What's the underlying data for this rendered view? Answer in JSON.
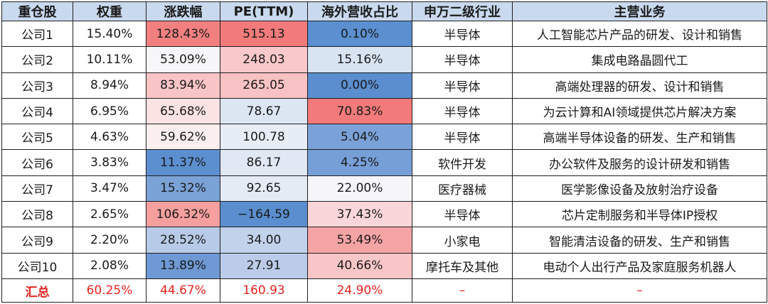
{
  "table": {
    "headers": [
      "重仓股",
      "权重",
      "涨跌幅",
      "PE(TTM)",
      "海外营收占比",
      "申万二级行业",
      "主营业务"
    ],
    "rows": [
      {
        "name": "公司1",
        "weight": "15.40%",
        "change": "128.43%",
        "pe": "515.13",
        "overseas": "0.10%",
        "industry": "半导体",
        "business": "人工智能芯片产品的研发、设计和销售",
        "colors": {
          "change": "#f28080",
          "pe": "#f27a7a",
          "overseas": "#5b8fd0"
        }
      },
      {
        "name": "公司2",
        "weight": "10.11%",
        "change": "53.09%",
        "pe": "248.03",
        "overseas": "15.16%",
        "industry": "半导体",
        "business": "集成电路晶圆代工",
        "colors": {
          "change": "#f7f7f9",
          "pe": "#f9c8cb",
          "overseas": "#d9e4f2"
        }
      },
      {
        "name": "公司3",
        "weight": "8.94%",
        "change": "83.94%",
        "pe": "265.05",
        "overseas": "0.00%",
        "industry": "半导体",
        "business": "高端处理器的研发、设计和销售",
        "colors": {
          "change": "#f8c4c6",
          "pe": "#f8c1c4",
          "overseas": "#5a8ecf"
        }
      },
      {
        "name": "公司4",
        "weight": "6.95%",
        "change": "65.68%",
        "pe": "78.67",
        "overseas": "70.83%",
        "industry": "半导体",
        "business": "为云计算和AI领域提供芯片解决方案",
        "colors": {
          "change": "#fbe3e4",
          "pe": "#dce6f3",
          "overseas": "#f27a7a"
        }
      },
      {
        "name": "公司5",
        "weight": "4.63%",
        "change": "59.62%",
        "pe": "100.78",
        "overseas": "5.04%",
        "industry": "半导体",
        "business": "高端半导体设备的研发、生产和销售",
        "colors": {
          "change": "#fbeeee",
          "pe": "#e7edf6",
          "overseas": "#7aa2d8"
        }
      },
      {
        "name": "公司6",
        "weight": "3.83%",
        "change": "11.37%",
        "pe": "86.17",
        "overseas": "4.25%",
        "industry": "软件开发",
        "business": "办公软件及服务的设计研发和销售",
        "colors": {
          "change": "#5c8fd0",
          "pe": "#e0e8f4",
          "overseas": "#779fd7"
        }
      },
      {
        "name": "公司7",
        "weight": "3.47%",
        "change": "15.32%",
        "pe": "92.65",
        "overseas": "22.00%",
        "industry": "医疗器械",
        "business": "医学影像设备及放射治疗设备",
        "colors": {
          "change": "#7ba2d7",
          "pe": "#e4ebf5",
          "overseas": "#f6f6fa"
        }
      },
      {
        "name": "公司8",
        "weight": "2.65%",
        "change": "106.32%",
        "pe": "−164.59",
        "overseas": "37.43%",
        "industry": "半导体",
        "business": "芯片定制服务和半导体IP授权",
        "colors": {
          "change": "#f59f9f",
          "pe": "#5a8ecf",
          "overseas": "#fad6d8"
        }
      },
      {
        "name": "公司9",
        "weight": "2.20%",
        "change": "28.52%",
        "pe": "34.00",
        "overseas": "53.49%",
        "industry": "小家电",
        "business": "智能清洁设备的研发、生产和销售",
        "colors": {
          "change": "#b7cbe8",
          "pe": "#c1d2eb",
          "overseas": "#f5a4a6"
        }
      },
      {
        "name": "公司10",
        "weight": "2.08%",
        "change": "13.89%",
        "pe": "27.91",
        "overseas": "40.66%",
        "industry": "摩托车及其他",
        "business": "电动个人出行产品及家庭服务机器人",
        "colors": {
          "change": "#6e99d4",
          "pe": "#bacce9",
          "overseas": "#f9c6c8"
        }
      }
    ],
    "total": {
      "name": "汇总",
      "weight": "60.25%",
      "change": "44.67%",
      "pe": "160.93",
      "overseas": "24.90%",
      "industry": "–",
      "business": "–"
    }
  },
  "colors": {
    "header_bg": "#c9d9ee",
    "total_text": "#e8231f"
  }
}
